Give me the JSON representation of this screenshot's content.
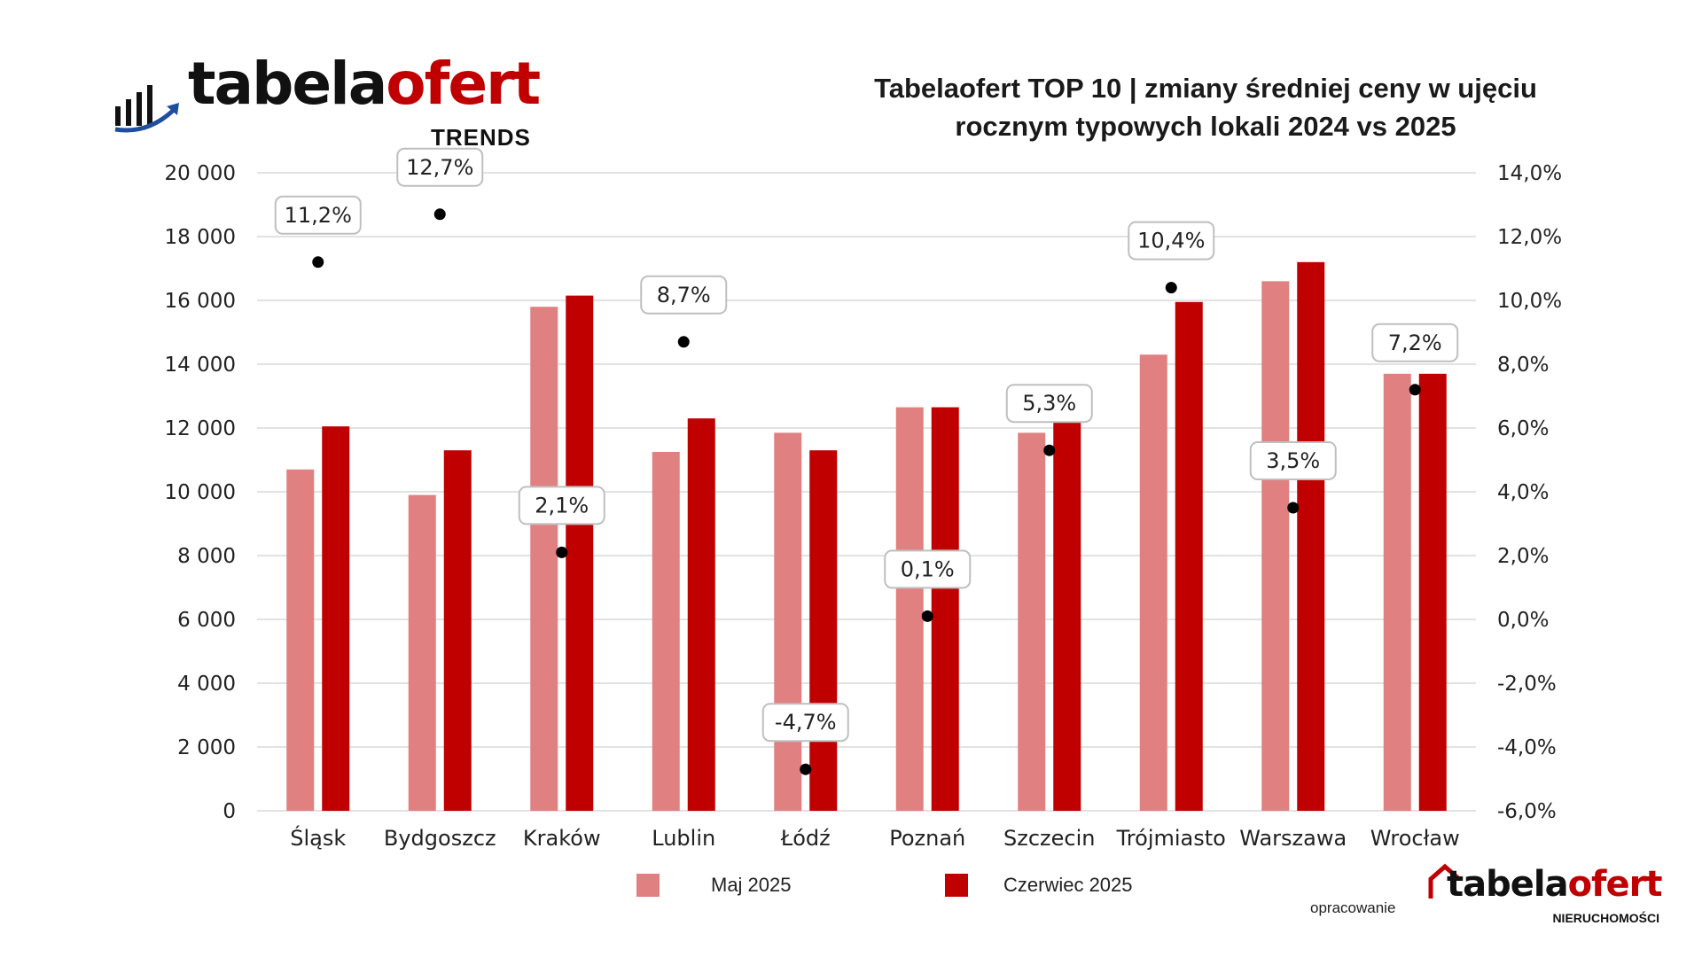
{
  "branding": {
    "logo_text_main": "tabela",
    "logo_text_accent": "ofert",
    "logo_sub": "TRENDS",
    "credit_label": "opracowanie",
    "footer_logo_main": "tabela",
    "footer_logo_accent": "ofert",
    "footer_logo_sub": "NIERUCHOMOŚCI",
    "brand_color": "#c00000"
  },
  "chart_data": {
    "type": "bar",
    "title_lines": [
      "Tabelaofert TOP 10 | zmiany średniej ceny w ujęciu",
      "rocznym typowych lokali 2024 vs 2025"
    ],
    "categories": [
      "Śląsk",
      "Bydgoszcz",
      "Kraków",
      "Lublin",
      "Łódź",
      "Poznań",
      "Szczecin",
      "Trójmiasto",
      "Warszawa",
      "Wrocław"
    ],
    "series": [
      {
        "name": "Maj 2025",
        "color": "#e08080",
        "axis": "left",
        "values": [
          10700,
          9900,
          15800,
          11250,
          11850,
          12650,
          11850,
          14300,
          16600,
          13700
        ]
      },
      {
        "name": "Czerwiec 2025",
        "color": "#c00000",
        "axis": "left",
        "values": [
          12050,
          11300,
          16150,
          12300,
          11300,
          12650,
          13150,
          15950,
          17200,
          13700
        ]
      }
    ],
    "change_series": {
      "axis": "right",
      "marker": "dot",
      "values": [
        11.2,
        12.7,
        2.1,
        8.7,
        -4.7,
        0.1,
        5.3,
        10.4,
        3.5,
        7.2
      ],
      "labels": [
        "11,2%",
        "12,7%",
        "2,1%",
        "8,7%",
        "-4,7%",
        "0,1%",
        "5,3%",
        "10,4%",
        "3,5%",
        "7,2%"
      ]
    },
    "left_axis": {
      "ylim": [
        0,
        20000
      ],
      "ticks": [
        0,
        2000,
        4000,
        6000,
        8000,
        10000,
        12000,
        14000,
        16000,
        18000,
        20000
      ],
      "tick_labels": [
        "0",
        "2 000",
        "4 000",
        "6 000",
        "8 000",
        "10 000",
        "12 000",
        "14 000",
        "16 000",
        "18 000",
        "20 000"
      ]
    },
    "right_axis": {
      "ylim": [
        -6,
        14
      ],
      "ticks": [
        -6,
        -4,
        -2,
        0,
        2,
        4,
        6,
        8,
        10,
        12,
        14
      ],
      "tick_labels": [
        "-6,0%",
        "-4,0%",
        "-2,0%",
        "0,0%",
        "2,0%",
        "4,0%",
        "6,0%",
        "8,0%",
        "10,0%",
        "12,0%",
        "14,0%"
      ]
    },
    "grid": true,
    "legend_position": "bottom"
  }
}
